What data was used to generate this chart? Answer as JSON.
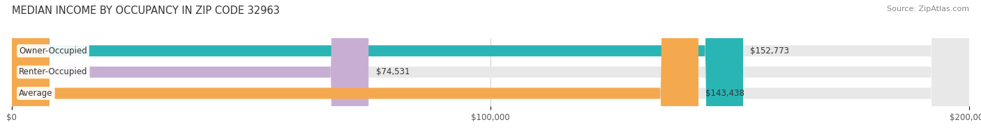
{
  "title": "MEDIAN INCOME BY OCCUPANCY IN ZIP CODE 32963",
  "source": "Source: ZipAtlas.com",
  "categories": [
    "Owner-Occupied",
    "Renter-Occupied",
    "Average"
  ],
  "values": [
    152773,
    74531,
    143438
  ],
  "bar_colors": [
    "#2ab5b5",
    "#c9aed4",
    "#f5a94e"
  ],
  "bar_bg_color": "#e8e8e8",
  "value_labels": [
    "$152,773",
    "$74,531",
    "$143,438"
  ],
  "xlim": [
    0,
    200000
  ],
  "xticks": [
    0,
    100000,
    200000
  ],
  "xtick_labels": [
    "$0",
    "$100,000",
    "$200,000"
  ],
  "title_fontsize": 10.5,
  "tick_fontsize": 8.5,
  "bar_label_fontsize": 8.5,
  "source_fontsize": 8,
  "background_color": "#ffffff",
  "bar_height": 0.52,
  "rounding_size": 8000
}
